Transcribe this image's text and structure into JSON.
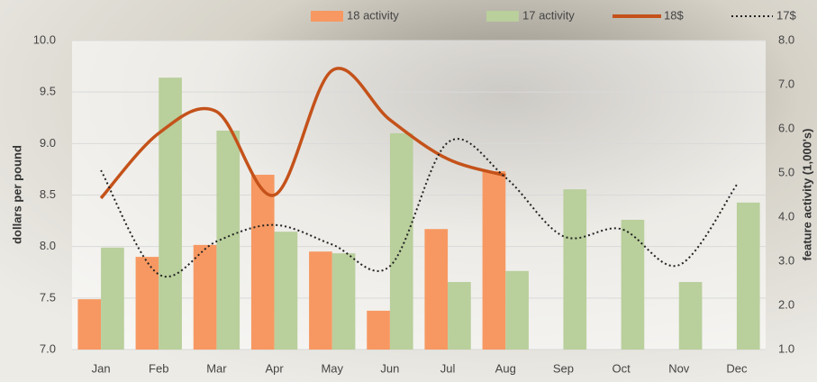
{
  "chart_data": {
    "type": "bar_line",
    "categories": [
      "Jan",
      "Feb",
      "Mar",
      "Apr",
      "May",
      "Jun",
      "Jul",
      "Aug",
      "Sep",
      "Oct",
      "Nov",
      "Dec"
    ],
    "ylabel": "dollars per pound",
    "y2label": "feature activity (1,000's)",
    "ylim": [
      7.0,
      10.0
    ],
    "yticks": [
      {
        "value": 7.0,
        "label": "7.0"
      },
      {
        "value": 7.5,
        "label": "7.5"
      },
      {
        "value": 8.0,
        "label": "8.0"
      },
      {
        "value": 8.5,
        "label": "8.5"
      },
      {
        "value": 9.0,
        "label": "9.0"
      },
      {
        "value": 9.5,
        "label": "9.5"
      },
      {
        "value": 10.0,
        "label": "10.0"
      }
    ],
    "y2lim": [
      1.0,
      8.0
    ],
    "y2ticks": [
      {
        "value": 1.0,
        "label": "1.0"
      },
      {
        "value": 2.0,
        "label": "2.0"
      },
      {
        "value": 3.0,
        "label": "3.0"
      },
      {
        "value": 4.0,
        "label": "4.0"
      },
      {
        "value": 5.0,
        "label": "5.0"
      },
      {
        "value": 6.0,
        "label": "6.0"
      },
      {
        "value": 7.0,
        "label": "7.0"
      },
      {
        "value": 8.0,
        "label": "8.0"
      }
    ],
    "grid": true,
    "series": [
      {
        "name": "18 activity",
        "kind": "bar",
        "axis": "y2",
        "color": "#f79862",
        "values": [
          2.14,
          3.1,
          3.37,
          4.96,
          3.22,
          1.88,
          3.73,
          5.04,
          null,
          null,
          null,
          null
        ]
      },
      {
        "name": "17 activity",
        "kind": "bar",
        "axis": "y2",
        "color": "#b9cf9c",
        "values": [
          3.31,
          7.16,
          5.96,
          3.67,
          3.18,
          5.9,
          2.53,
          2.78,
          4.63,
          3.94,
          2.53,
          4.33
        ]
      },
      {
        "name": "18$",
        "kind": "line",
        "color": "#c4521a",
        "values": [
          8.47,
          9.1,
          9.31,
          8.5,
          9.71,
          9.23,
          8.85,
          8.69,
          null,
          null,
          null,
          null
        ]
      },
      {
        "name": "17$",
        "kind": "dotted",
        "color": "#222222",
        "values": [
          8.74,
          7.73,
          8.05,
          8.21,
          8.02,
          7.81,
          9.01,
          8.67,
          8.1,
          8.17,
          7.82,
          8.6
        ]
      }
    ]
  }
}
